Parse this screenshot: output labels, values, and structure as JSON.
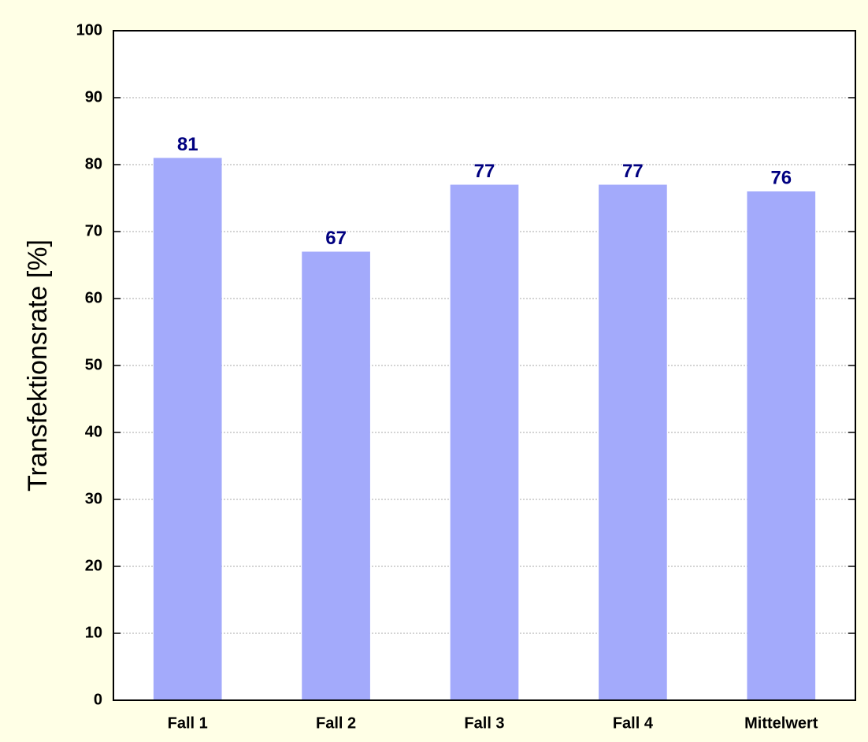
{
  "chart_data": {
    "type": "bar",
    "y_label": "Transfektionsrate [%]",
    "categories": [
      "Fall 1",
      "Fall 2",
      "Fall 3",
      "Fall 4",
      "Mittelwert"
    ],
    "values": [
      81,
      67,
      77,
      77,
      76
    ],
    "color": "#a3aafb",
    "label_color": "#000080",
    "ylim": [
      0,
      100
    ],
    "yticks": [
      0,
      10,
      20,
      30,
      40,
      50,
      60,
      70,
      80,
      90,
      100
    ],
    "grid": true
  }
}
